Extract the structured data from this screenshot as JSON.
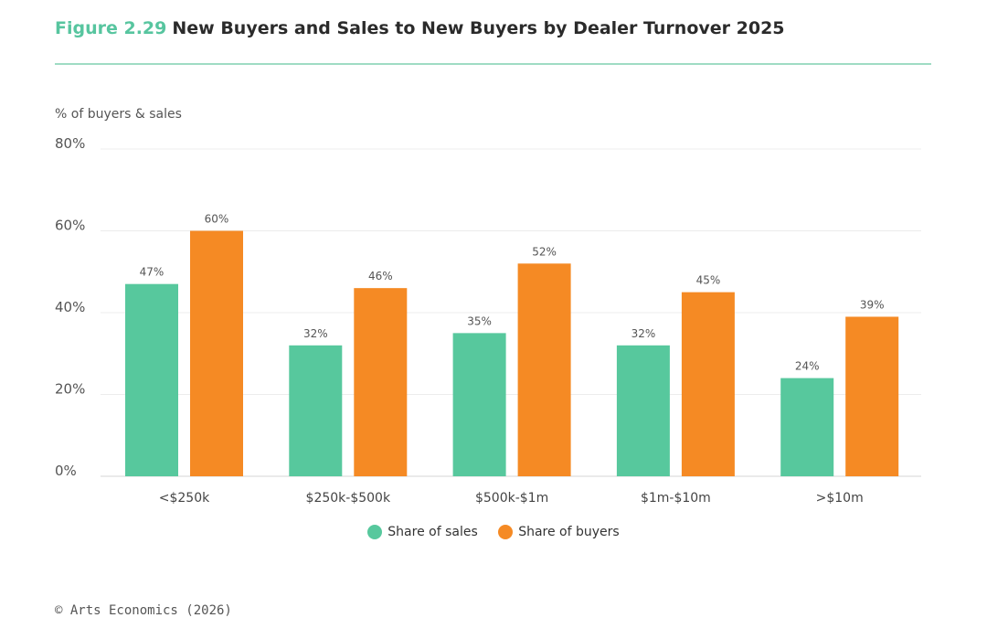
{
  "header": {
    "figure_number": "Figure 2.29",
    "title": "New Buyers and Sales to New Buyers by Dealer Turnover 2025"
  },
  "colors": {
    "accent": "#57c59f",
    "sales": "#57c89d",
    "buyers": "#f58a24",
    "grid": "#ececec",
    "text": "#333333"
  },
  "chart_data": {
    "type": "bar",
    "title": "New Buyers and Sales to New Buyers by Dealer Turnover 2025",
    "ylabel": "% of buyers & sales",
    "xlabel": "",
    "ylim": [
      0,
      80
    ],
    "yticks": [
      0,
      20,
      40,
      60,
      80
    ],
    "ytick_labels": [
      "0%",
      "20%",
      "40%",
      "60%",
      "80%"
    ],
    "grid": true,
    "legend_position": "bottom-center",
    "categories": [
      "<$250k",
      "$250k-$500k",
      "$500k-$1m",
      "$1m-$10m",
      ">$10m"
    ],
    "series": [
      {
        "name": "Share of sales",
        "color": "#57c89d",
        "values": [
          47,
          32,
          35,
          32,
          24
        ],
        "labels": [
          "47%",
          "32%",
          "35%",
          "32%",
          "24%"
        ]
      },
      {
        "name": "Share of buyers",
        "color": "#f58a24",
        "values": [
          60,
          46,
          52,
          45,
          39
        ],
        "labels": [
          "60%",
          "46%",
          "52%",
          "45%",
          "39%"
        ]
      }
    ]
  },
  "footer": {
    "copyright": "© Arts Economics (2026)"
  }
}
